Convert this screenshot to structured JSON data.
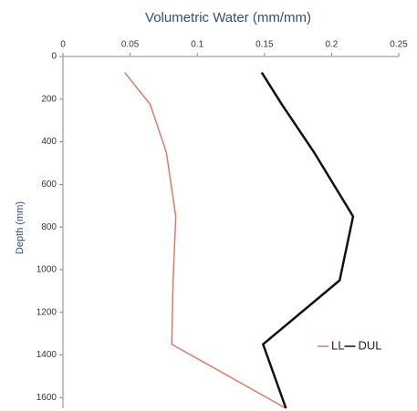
{
  "chart_data": {
    "type": "line",
    "title": "Volumetric Water (mm/mm)",
    "y_label": "Depth (mm)",
    "y": [
      75,
      225,
      450,
      750,
      1050,
      1350,
      1650
    ],
    "series": [
      {
        "name": "LL",
        "color": "#e07a66",
        "values": [
          0.046,
          0.065,
          0.077,
          0.084,
          0.082,
          0.081,
          0.166
        ]
      },
      {
        "name": "DUL",
        "color": "#111111",
        "values": [
          0.148,
          0.163,
          0.187,
          0.216,
          0.206,
          0.149,
          0.166
        ]
      }
    ],
    "xlim": [
      0,
      0.25
    ],
    "xticks": [
      0,
      0.05,
      0.1,
      0.15,
      0.2,
      0.25
    ],
    "ylim": [
      0,
      1650
    ],
    "yticks": [
      0,
      200,
      400,
      600,
      800,
      1000,
      1200,
      1400,
      1600
    ],
    "x_axis_position": "top",
    "y_inverted": true
  }
}
